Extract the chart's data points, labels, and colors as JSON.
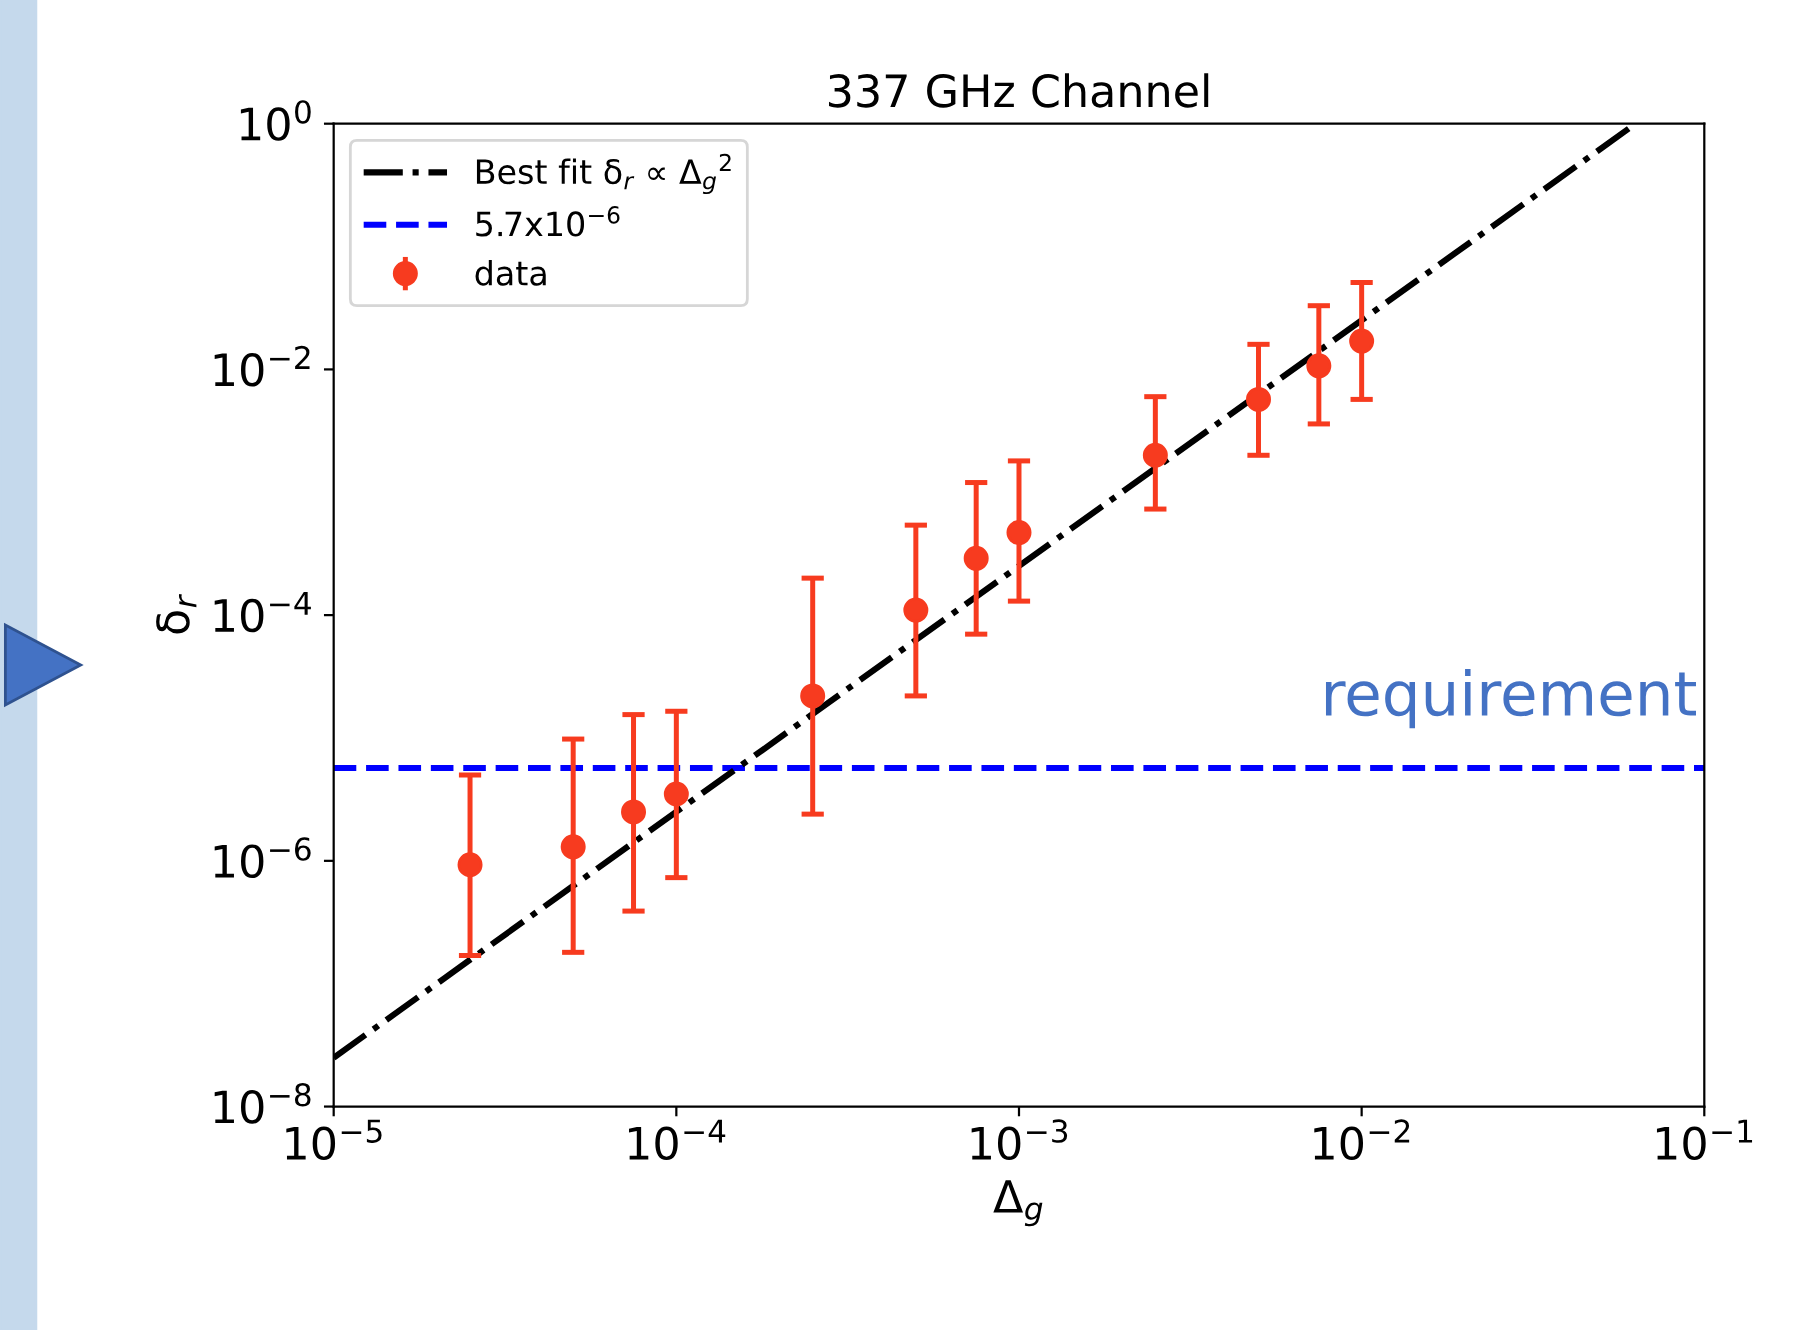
{
  "chart_data": {
    "type": "scatter",
    "title": "337 GHz Channel",
    "xlabel": "Δ$_{g}$",
    "ylabel": "δ$_{r}$",
    "log": "xy",
    "xlim": [
      1e-05,
      0.1
    ],
    "ylim": [
      1e-08,
      1
    ],
    "xticks": [
      {
        "value": 1e-05,
        "label": "10$^{−5}$"
      },
      {
        "value": 0.0001,
        "label": "10$^{−4}$"
      },
      {
        "value": 0.001,
        "label": "10$^{−3}$"
      },
      {
        "value": 0.01,
        "label": "10$^{−2}$"
      },
      {
        "value": 0.1,
        "label": "10$^{−1}$"
      }
    ],
    "yticks": [
      {
        "value": 1e-08,
        "label": "10$^{−8}$"
      },
      {
        "value": 1e-06,
        "label": "10$^{−6}$"
      },
      {
        "value": 0.0001,
        "label": "10$^{−4}$"
      },
      {
        "value": 0.01,
        "label": "10$^{−2}$"
      },
      {
        "value": 1,
        "label": "10$^{0}$"
      }
    ],
    "grid": false,
    "legend": "top left",
    "series": [
      {
        "name": "Best fit δ$_{r}$ ∝ Δ$_{g}$$^{2}$",
        "type": "line",
        "color": "#000000",
        "line_style": "dashdot",
        "marker": "none",
        "x": [
          1e-05,
          0.063
        ],
        "values": [
          2.5e-08,
          1
        ]
      },
      {
        "name": "data",
        "color": "#f73b1f",
        "marker": "circle",
        "x": [
          2.5e-05,
          5e-05,
          7.5e-05,
          0.0001,
          0.00025,
          0.0005,
          0.00075,
          0.001,
          0.0025,
          0.005,
          0.0075,
          0.01
        ],
        "values": [
          9.3e-07,
          1.3e-06,
          2.5e-06,
          3.5e-06,
          2.2e-05,
          0.00011,
          0.00029,
          0.00047,
          0.002,
          0.0057,
          0.0107,
          0.017
        ],
        "errors": [
          [
            1.7e-07,
            5e-06
          ],
          [
            1.8e-07,
            9.8e-06
          ],
          [
            3.9e-07,
            1.55e-05
          ],
          [
            7.3e-07,
            1.65e-05
          ],
          [
            2.4e-06,
            0.0002
          ],
          [
            2.2e-05,
            0.00054
          ],
          [
            7e-05,
            0.0012
          ],
          [
            0.00013,
            0.0018
          ],
          [
            0.00073,
            0.006
          ],
          [
            0.002,
            0.016
          ],
          [
            0.0036,
            0.033
          ],
          [
            0.0057,
            0.051
          ]
        ]
      }
    ],
    "ref_lines": [
      {
        "axis": "y",
        "value": 5.7e-06,
        "label": "5.7x10$^{−6}$",
        "color": "#0000ff",
        "line_style": "dashed"
      }
    ],
    "annotations": [
      "requirement"
    ]
  }
}
